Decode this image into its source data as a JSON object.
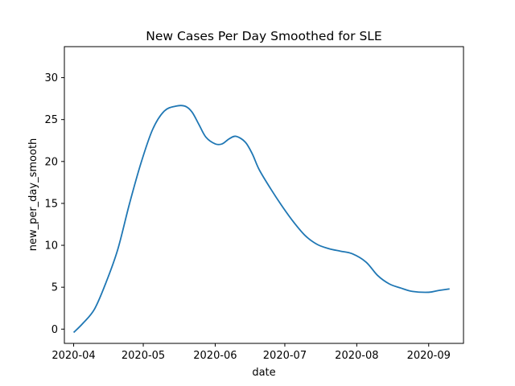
{
  "chart_data": {
    "type": "line",
    "title": "New Cases Per Day Smoothed for SLE",
    "xlabel": "date",
    "ylabel": "new_per_day_smooth",
    "xlim": [
      "2020-03-28",
      "2020-09-16"
    ],
    "ylim": [
      -1.7,
      33.7
    ],
    "x_ticks": [
      "2020-04",
      "2020-05",
      "2020-06",
      "2020-07",
      "2020-08",
      "2020-09"
    ],
    "y_ticks": [
      0,
      5,
      10,
      15,
      20,
      25,
      30
    ],
    "y_tick_labels": [
      "0",
      "5",
      "10",
      "15",
      "20",
      "25",
      "30"
    ],
    "grid": false,
    "line_color": "#1f77b4",
    "series": [
      {
        "x": [
          "2020-04-01",
          "2020-04-05",
          "2020-04-10",
          "2020-04-15",
          "2020-04-20",
          "2020-04-25",
          "2020-04-30",
          "2020-05-05",
          "2020-05-10",
          "2020-05-15",
          "2020-05-19",
          "2020-05-22",
          "2020-05-25",
          "2020-05-28",
          "2020-06-01",
          "2020-06-04",
          "2020-06-07",
          "2020-06-10",
          "2020-06-14",
          "2020-06-17",
          "2020-06-20",
          "2020-06-25",
          "2020-06-30",
          "2020-07-05",
          "2020-07-10",
          "2020-07-15",
          "2020-07-20",
          "2020-07-25",
          "2020-07-30",
          "2020-08-05",
          "2020-08-10",
          "2020-08-15",
          "2020-08-20",
          "2020-08-25",
          "2020-09-01",
          "2020-09-05",
          "2020-09-10"
        ],
        "values": [
          -0.4,
          0.7,
          2.4,
          5.6,
          9.5,
          14.9,
          19.8,
          23.8,
          26.0,
          26.6,
          26.6,
          25.9,
          24.4,
          22.9,
          22.1,
          22.1,
          22.7,
          23.0,
          22.3,
          20.9,
          19.0,
          16.7,
          14.6,
          12.7,
          11.1,
          10.1,
          9.6,
          9.3,
          9.0,
          8.0,
          6.4,
          5.4,
          4.9,
          4.5,
          4.4,
          4.6,
          4.8
        ]
      }
    ]
  }
}
